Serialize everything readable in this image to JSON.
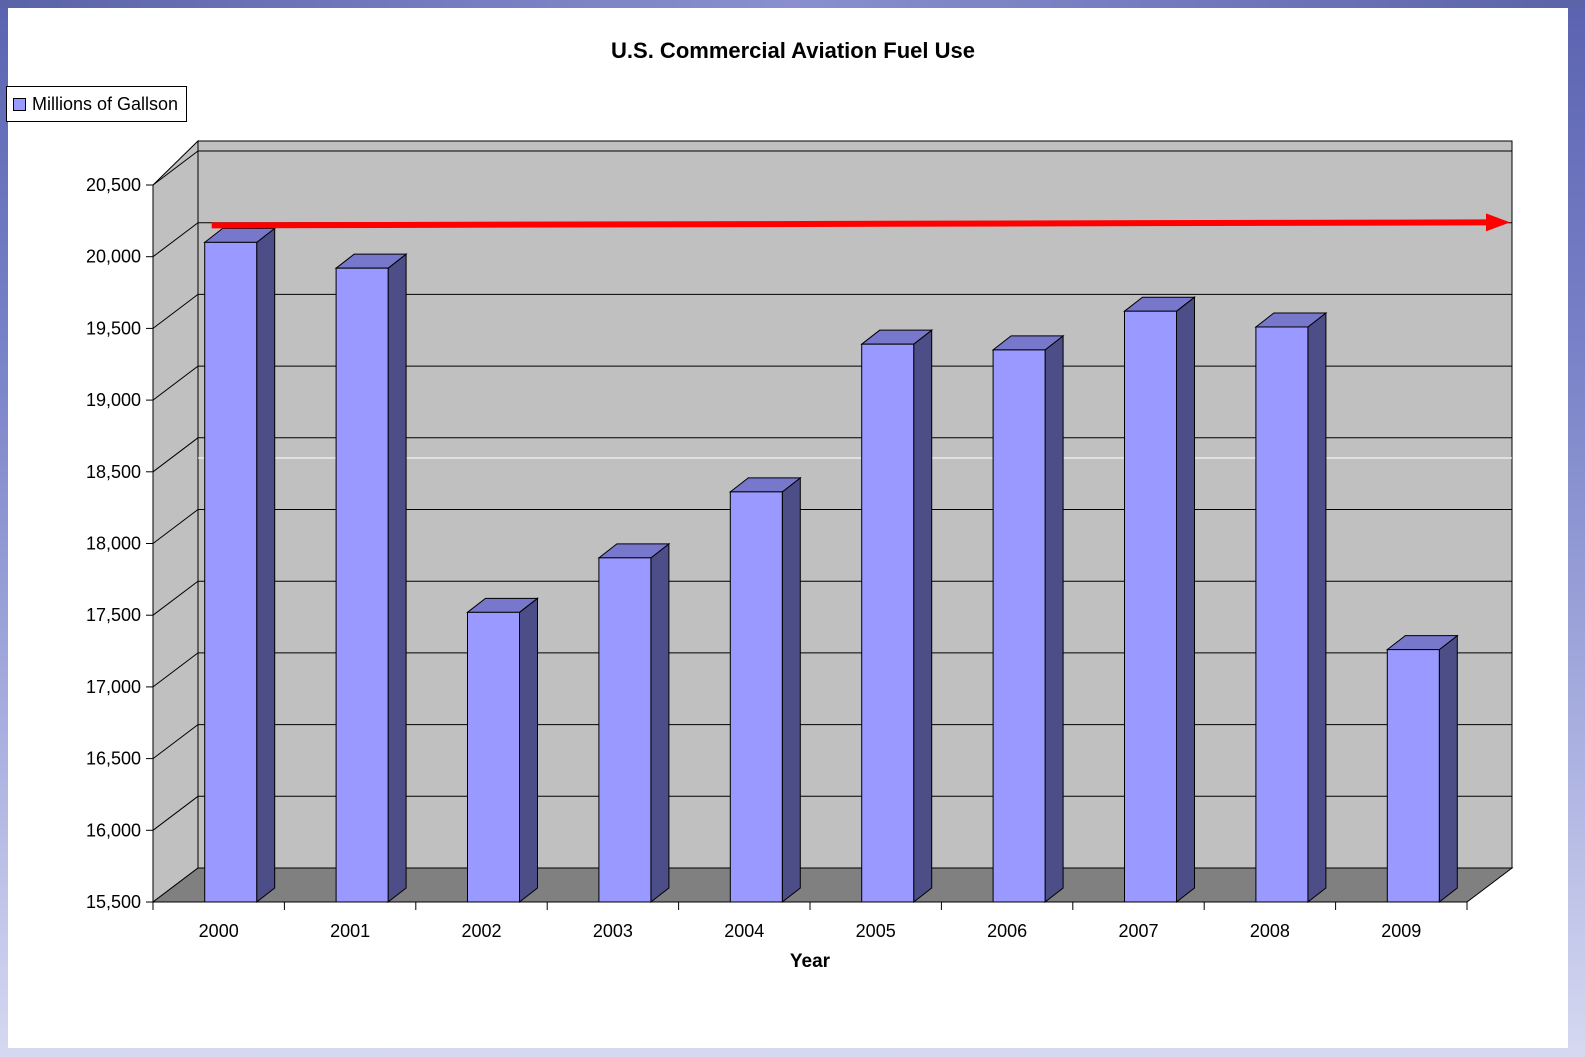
{
  "chart_data": {
    "type": "bar",
    "title": "U.S. Commercial Aviation Fuel Use",
    "xlabel": "Year",
    "ylabel": "",
    "categories": [
      "2000",
      "2001",
      "2002",
      "2003",
      "2004",
      "2005",
      "2006",
      "2007",
      "2008",
      "2009"
    ],
    "series": [
      {
        "name": "Millions of Gallson",
        "values": [
          20100,
          19920,
          17520,
          17900,
          18360,
          19390,
          19350,
          19620,
          19510,
          17260
        ]
      }
    ],
    "ylim": [
      15500,
      20500
    ],
    "yticks": [
      "15,500",
      "16,000",
      "16,500",
      "17,000",
      "17,500",
      "18,000",
      "18,500",
      "19,000",
      "19,500",
      "20,000",
      "20,500"
    ],
    "grid": true,
    "legend_position": "top-left",
    "three_d": true,
    "annotation": "red horizontal arrow at the 2000 level",
    "colors": {
      "bar_front": "#9999ff",
      "bar_side": "#4d4d88",
      "bar_top": "#7777cc",
      "wall": "#c0c0c0",
      "floor": "#808080",
      "arrow": "#ff0000"
    }
  }
}
